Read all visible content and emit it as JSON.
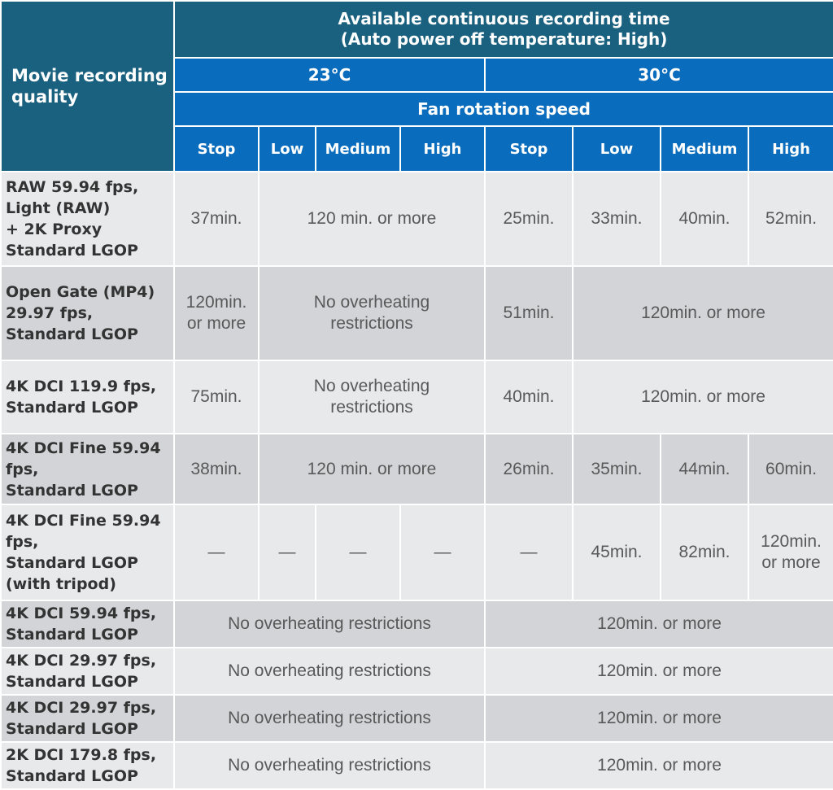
{
  "header": {
    "quality": "Movie recording quality",
    "time_line1": "Available continuous recording time",
    "time_line2": "(Auto power off temperature: High)",
    "temp_a": "23°C",
    "temp_b": "30°C",
    "fan": "Fan rotation speed",
    "speeds": [
      "Stop",
      "Low",
      "Medium",
      "High",
      "Stop",
      "Low",
      "Medium",
      "High"
    ]
  },
  "rows": [
    {
      "label": [
        "RAW 59.94 fps,",
        "Light (RAW)",
        "+ 2K Proxy",
        "Standard LGOP"
      ],
      "c": [
        "37min.",
        "120 min. or more",
        "25min.",
        "33min.",
        "40min.",
        "52min."
      ]
    },
    {
      "label": [
        "Open Gate (MP4)",
        "29.97 fps,",
        "Standard LGOP"
      ],
      "c": [
        "120min.",
        "or more",
        "No overheating",
        "restrictions",
        "51min.",
        "120min. or more"
      ]
    },
    {
      "label": [
        "4K DCI 119.9 fps,",
        "Standard LGOP"
      ],
      "c": [
        "75min.",
        "No overheating",
        "restrictions",
        "40min.",
        "120min. or more"
      ]
    },
    {
      "label": [
        "4K DCI Fine 59.94",
        "fps,",
        "Standard LGOP"
      ],
      "c": [
        "38min.",
        "120 min. or more",
        "26min.",
        "35min.",
        "44min.",
        "60min."
      ]
    },
    {
      "label": [
        "4K DCI Fine 59.94",
        "fps,",
        "Standard LGOP",
        "(with tripod)"
      ],
      "c": [
        "—",
        "—",
        "—",
        "—",
        "—",
        "45min.",
        "82min.",
        "120min.",
        "or more"
      ]
    },
    {
      "label": [
        "4K DCI 59.94 fps,",
        "Standard LGOP"
      ],
      "c": [
        "No overheating restrictions",
        "120min. or more"
      ]
    },
    {
      "label": [
        "4K DCI 29.97 fps,",
        "Standard LGOP"
      ],
      "c": [
        "No overheating restrictions",
        "120min. or more"
      ]
    },
    {
      "label": [
        "4K DCI 29.97 fps,",
        "Standard LGOP"
      ],
      "c": [
        "No overheating restrictions",
        "120min. or more"
      ]
    },
    {
      "label": [
        "2K DCI 179.8 fps,",
        "Standard LGOP"
      ],
      "c": [
        "No overheating restrictions",
        "120min. or more"
      ]
    }
  ]
}
